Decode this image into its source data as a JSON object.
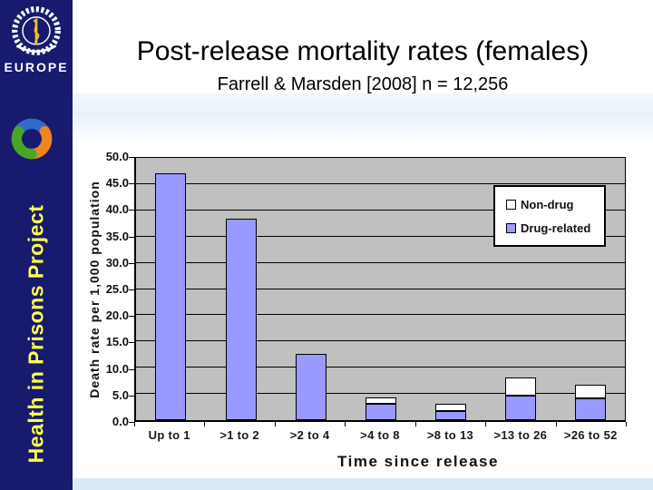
{
  "sidebar": {
    "who_label": "EUROPE",
    "project_title": "Health in Prisons Project",
    "background_color": "#171a6d",
    "text_color": "#ffff4d"
  },
  "header": {
    "title": "Post-release mortality rates (females)",
    "subtitle": "Farrell & Marsden [2008] n = 12,256"
  },
  "chart_data": {
    "type": "bar",
    "stacked": true,
    "title": "",
    "xlabel": "Time since release",
    "ylabel": "Death rate per 1,000 population",
    "categories": [
      "Up to 1",
      ">1 to 2",
      ">2 to 4",
      ">4 to 8",
      ">8 to 13",
      ">13 to 26",
      ">26 to 52"
    ],
    "series": [
      {
        "name": "Drug-related",
        "color": "#9999ff",
        "values": [
          47.0,
          38.4,
          12.7,
          3.2,
          1.8,
          4.6,
          4.2
        ]
      },
      {
        "name": "Non-drug",
        "color": "#ffffff",
        "values": [
          0,
          0,
          0,
          1.1,
          1.4,
          3.6,
          2.5
        ]
      }
    ],
    "legend": [
      {
        "label": "Non-drug",
        "color": "#ffffff"
      },
      {
        "label": "Drug-related",
        "color": "#9999ff"
      }
    ],
    "legend_position": "top-right",
    "ylim": [
      0,
      50
    ],
    "ytick_step": 5,
    "yticks": [
      "0.0",
      "5.0",
      "10.0",
      "15.0",
      "20.0",
      "25.0",
      "30.0",
      "35.0",
      "40.0",
      "45.0",
      "50.0"
    ],
    "grid": true,
    "plot_bg": "#c0c0c0",
    "gridline_color": "#000000"
  }
}
